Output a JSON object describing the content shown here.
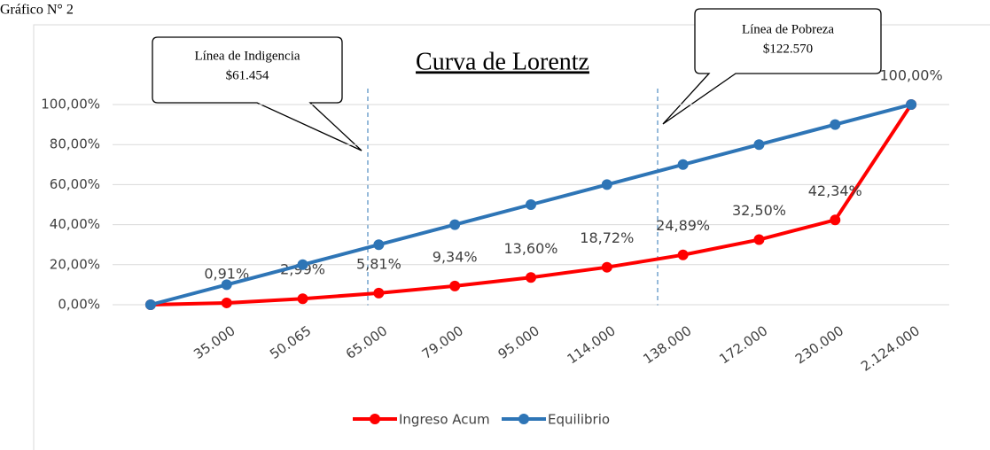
{
  "caption": "Gráfico N° 2",
  "chart_data": {
    "type": "line",
    "title": "Curva de Lorentz",
    "categories": [
      null,
      "35.000",
      "50.065",
      "65.000",
      "79.000",
      "95.000",
      "114.000",
      "138.000",
      "172.000",
      "230.000",
      "2.124.000"
    ],
    "series": [
      {
        "name": "Ingreso Acum",
        "color": "#ff0000",
        "values": [
          0,
          0.91,
          2.99,
          5.81,
          9.34,
          13.6,
          18.72,
          24.89,
          32.5,
          42.34,
          100
        ],
        "value_labels": [
          null,
          "0,91%",
          "2,99%",
          "5,81%",
          "9,34%",
          "13,60%",
          "18,72%",
          "24,89%",
          "32,50%",
          "42,34%",
          "100,00%"
        ]
      },
      {
        "name": "Equilibrio",
        "color": "#2e75b6",
        "values": [
          0,
          10,
          20,
          30,
          40,
          50,
          60,
          70,
          80,
          90,
          100
        ]
      }
    ],
    "ylim": [
      0,
      100
    ],
    "yticks": [
      {
        "value": 0,
        "label": "0,00%"
      },
      {
        "value": 20,
        "label": "20,00%"
      },
      {
        "value": 40,
        "label": "40,00%"
      },
      {
        "value": 60,
        "label": "60,00%"
      },
      {
        "value": 80,
        "label": "80,00%"
      },
      {
        "value": 100,
        "label": "100,00%"
      }
    ],
    "legend": "bottom",
    "annotations": [
      {
        "lines": [
          "Línea de Indigencia",
          "$61.454"
        ]
      },
      {
        "lines": [
          "Línea de Pobreza",
          "$122.570"
        ]
      }
    ]
  }
}
